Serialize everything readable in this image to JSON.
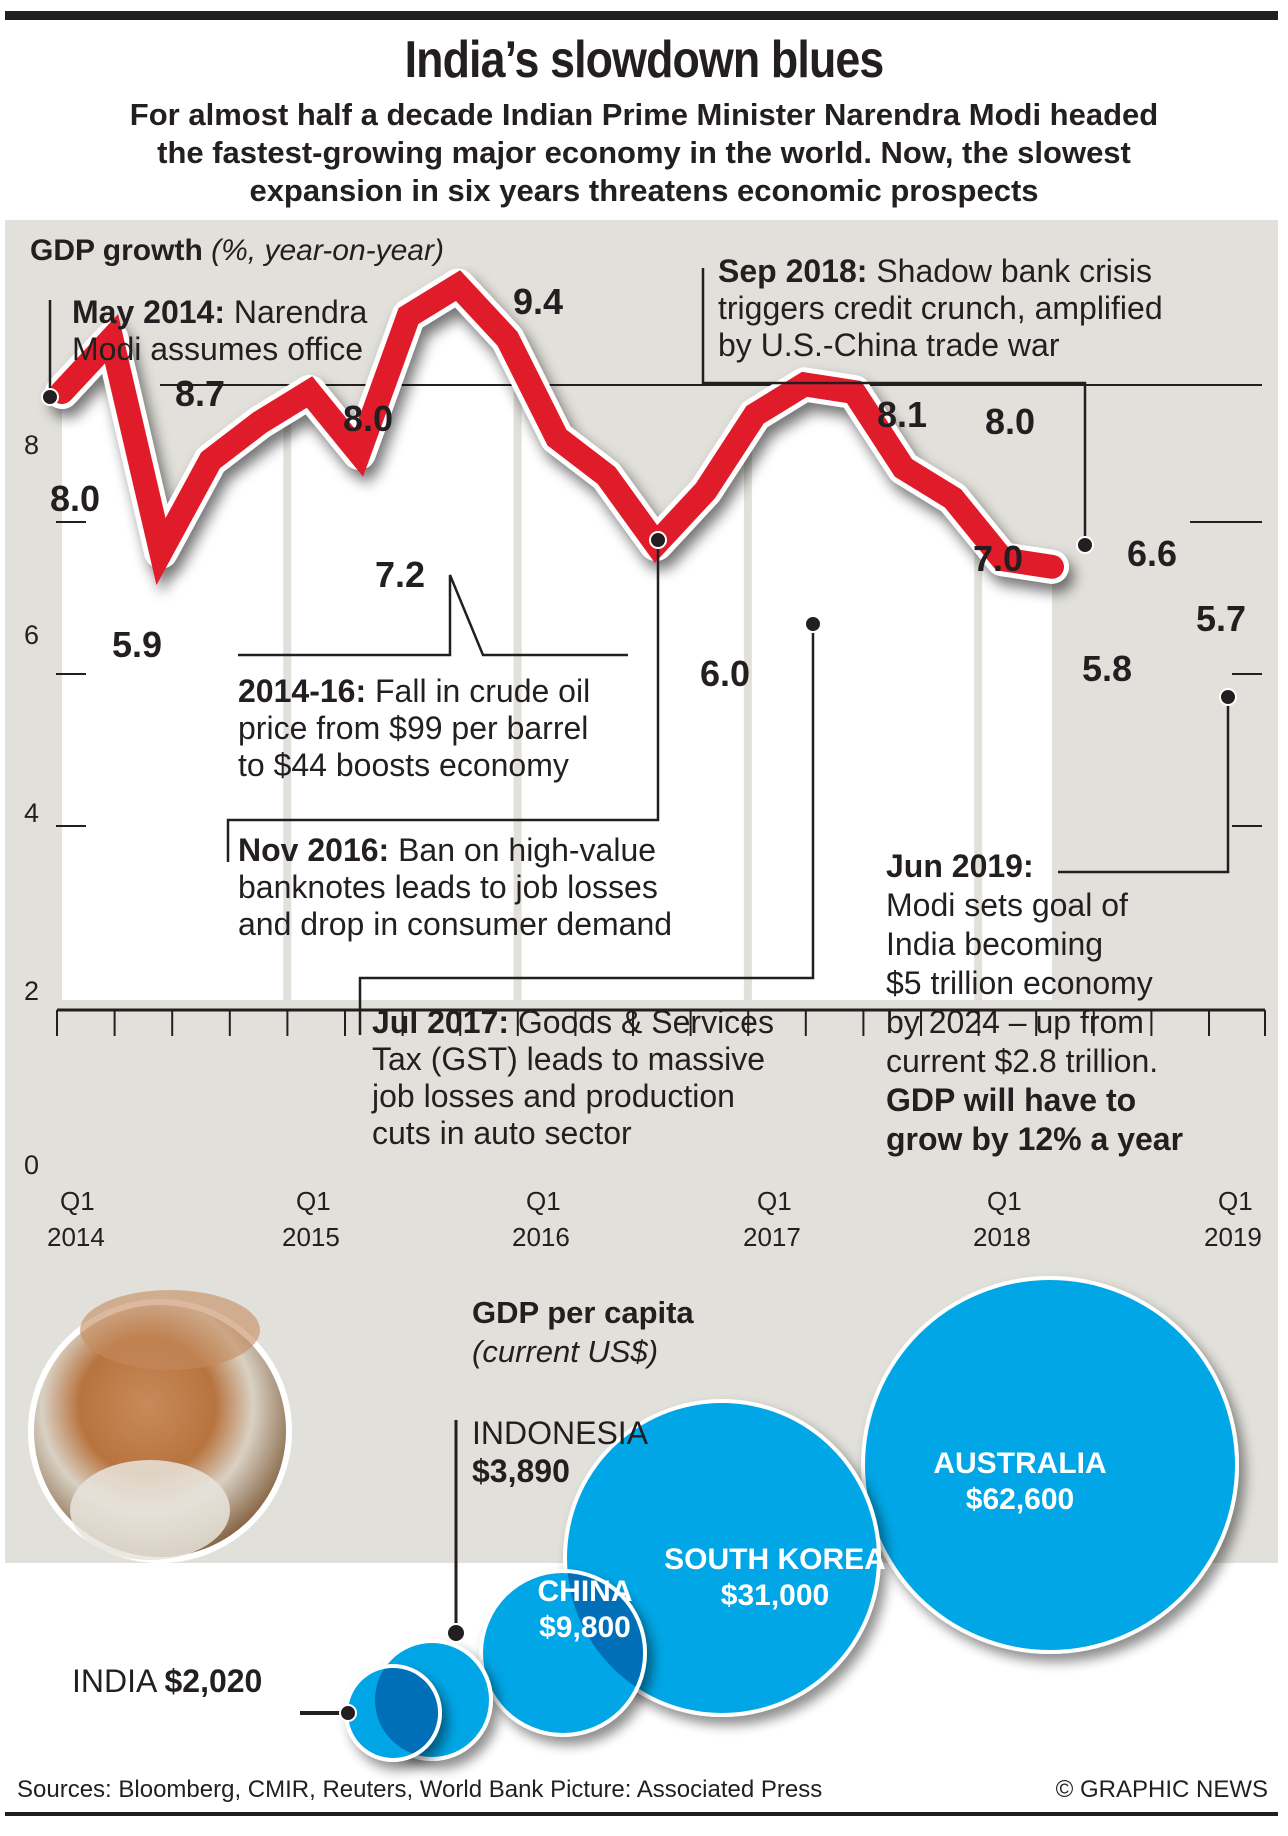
{
  "title": "India’s slowdown blues",
  "subtitle": [
    "For almost half a decade Indian Prime Minister Narendra Modi headed",
    "the fastest-growing major economy in the world. Now, the slowest",
    "expansion in six years threatens economic prospects"
  ],
  "colors": {
    "line": "#e01d2a",
    "panel": "#e1e0da",
    "bubble": "#00a6e6",
    "bubble_overlap": "#006fb8",
    "text": "#231f20"
  },
  "chart_data": [
    {
      "type": "line",
      "title": "GDP growth",
      "title_unit": "(%, year-on-year)",
      "xlabel": "",
      "ylabel": "",
      "ylim": [
        0,
        10
      ],
      "yticks": [
        "0",
        "2",
        "4",
        "6",
        "8"
      ],
      "x": [
        "Q1 2014",
        "Q2 2014",
        "Q3 2014",
        "Q4 2014",
        "Q1 2015",
        "Q2 2015",
        "Q3 2015",
        "Q4 2015",
        "Q1 2016",
        "Q2 2016",
        "Q3 2016",
        "Q4 2016",
        "Q1 2017",
        "Q2 2017",
        "Q3 2017",
        "Q4 2017",
        "Q1 2018",
        "Q2 2018",
        "Q3 2018",
        "Q4 2018",
        "Q1 2019"
      ],
      "xticks": [
        {
          "q": "Q1",
          "year": "2014"
        },
        {
          "q": "Q1",
          "year": "2015"
        },
        {
          "q": "Q1",
          "year": "2016"
        },
        {
          "q": "Q1",
          "year": "2017"
        },
        {
          "q": "Q1",
          "year": "2018"
        },
        {
          "q": "Q1",
          "year": "2019"
        }
      ],
      "series": [
        {
          "name": "GDP growth",
          "values": [
            8.0,
            8.7,
            5.9,
            7.1,
            7.6,
            8.0,
            7.2,
            9.0,
            9.4,
            8.7,
            7.4,
            6.9,
            6.0,
            6.7,
            7.7,
            8.1,
            8.0,
            7.0,
            6.6,
            5.8,
            5.7
          ]
        }
      ],
      "data_labels": [
        {
          "index": 0,
          "text": "8.0"
        },
        {
          "index": 1,
          "text": "8.7"
        },
        {
          "index": 2,
          "text": "5.9"
        },
        {
          "index": 5,
          "text": "8.0"
        },
        {
          "index": 6,
          "text": "7.2"
        },
        {
          "index": 8,
          "text": "9.4"
        },
        {
          "index": 12,
          "text": "6.0"
        },
        {
          "index": 15,
          "text": "8.1"
        },
        {
          "index": 16,
          "text": "8.0"
        },
        {
          "index": 17,
          "text": "7.0"
        },
        {
          "index": 18,
          "text": "6.6"
        },
        {
          "index": 19,
          "text": "5.8"
        },
        {
          "index": 20,
          "text": "5.7"
        }
      ],
      "annotations": [
        {
          "head": "May 2014:",
          "body": [
            "Narendra",
            "Modi assumes office"
          ]
        },
        {
          "head": "2014-16:",
          "body": [
            "Fall in crude oil",
            "price from $99 per barrel",
            "to $44 boosts economy"
          ]
        },
        {
          "head": "Nov 2016:",
          "body": [
            "Ban on high-value",
            "banknotes leads to job losses",
            "and drop in consumer demand"
          ]
        },
        {
          "head": "Jul 2017:",
          "body": [
            "Goods & Services",
            "Tax (GST) leads to massive",
            "job losses and production",
            "cuts in auto sector"
          ]
        },
        {
          "head": "Sep 2018:",
          "body": [
            "Shadow bank crisis",
            "triggers credit crunch, amplified",
            "by U.S.-China trade war"
          ]
        },
        {
          "head": "Jun 2019:",
          "body": [
            "Modi sets goal of",
            "India becoming",
            "$5 trillion economy",
            "by 2024 – up from",
            "current $2.8 trillion."
          ],
          "bold_tail": [
            "GDP will have to",
            "grow by 12% a year"
          ]
        }
      ]
    },
    {
      "type": "bubble",
      "title": "GDP per capita",
      "subtitle": "(current US$)",
      "categories": [
        "INDIA",
        "INDONESIA",
        "CHINA",
        "SOUTH KOREA",
        "AUSTRALIA"
      ],
      "values": [
        2020,
        3890,
        9800,
        31000,
        62600
      ],
      "value_labels": [
        "$2,020",
        "$3,890",
        "$9,800",
        "$31,000",
        "$62,600"
      ]
    }
  ],
  "photo_alt": "Narendra Modi portrait",
  "footer": {
    "sources": "Sources: Bloomberg, CMIR, Reuters, World Bank   Picture: Associated Press",
    "credit": "© GRAPHIC NEWS"
  }
}
